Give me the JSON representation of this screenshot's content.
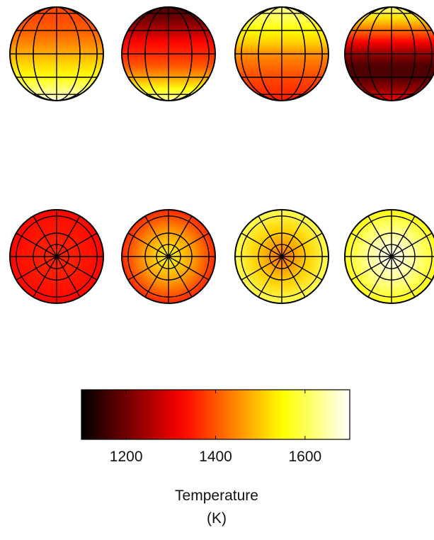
{
  "colorbar": {
    "colormap": "hot",
    "range": [
      1100,
      1700
    ],
    "ticks": [
      1200,
      1400,
      1600
    ],
    "tick_labels": [
      "1200",
      "1400",
      "1600"
    ],
    "label_line1": "Temperature",
    "label_line2": "(K)"
  },
  "rows": [
    {
      "projection": "orthographic-equatorial-view",
      "globes": [
        {
          "band_temperatures_top_to_bottom_K": [
            1390,
            1390,
            1410,
            1440,
            1480,
            1520,
            1560,
            1620,
            1680
          ]
        },
        {
          "band_temperatures_top_to_bottom_K": [
            1170,
            1200,
            1260,
            1330,
            1360,
            1400,
            1470,
            1560,
            1650
          ]
        },
        {
          "band_temperatures_top_to_bottom_K": [
            1630,
            1600,
            1550,
            1510,
            1450,
            1420,
            1390,
            1370,
            1350
          ]
        },
        {
          "band_temperatures_top_to_bottom_K": [
            1620,
            1520,
            1420,
            1320,
            1230,
            1170,
            1170,
            1230,
            1310
          ]
        }
      ]
    },
    {
      "projection": "orthographic-polar-view",
      "globes": [
        {
          "center_K": 1360,
          "edge_K": 1330
        },
        {
          "center_K": 1560,
          "edge_K": 1360
        },
        {
          "center_K": 1420,
          "edge_K": 1600
        },
        {
          "center_K": 1700,
          "edge_K": 1560
        }
      ]
    }
  ]
}
